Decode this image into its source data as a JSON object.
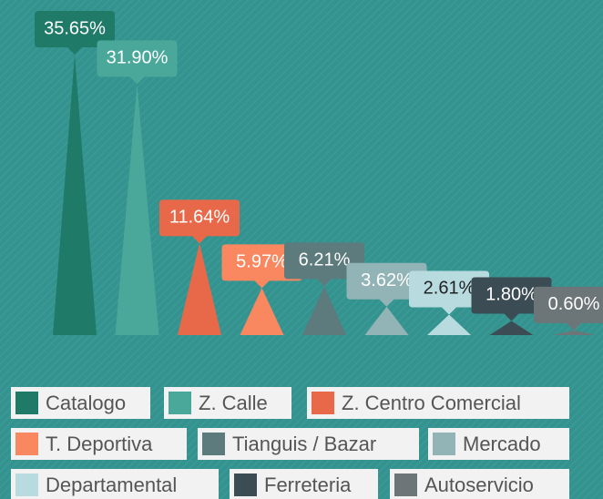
{
  "chart_data": {
    "type": "bar",
    "categories": [
      "Catalogo",
      "Z. Calle",
      "Z. Centro Comercial",
      "T. Deportiva",
      "Tianguis / Bazar",
      "Mercado",
      "Departamental",
      "Ferreteria",
      "Autoservicio"
    ],
    "values": [
      35.65,
      31.9,
      11.64,
      5.97,
      6.21,
      3.62,
      2.61,
      1.8,
      0.6
    ],
    "value_labels": [
      "35.65%",
      "31.90%",
      "11.64%",
      "5.97%",
      "6.21%",
      "3.62%",
      "2.61%",
      "1.80%",
      "0.60%"
    ],
    "colors": [
      "#1f7a68",
      "#4aa89a",
      "#e8694a",
      "#f98861",
      "#5d7a7d",
      "#93b4b6",
      "#b8dbe0",
      "#3c4c55",
      "#6c7577"
    ]
  }
}
